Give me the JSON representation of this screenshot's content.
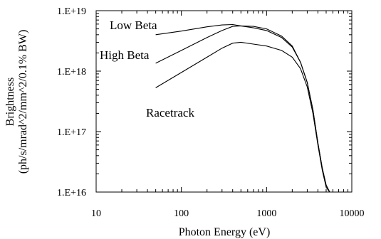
{
  "chart_data": {
    "type": "line",
    "title": "",
    "xlabel": "Photon Energy (eV)",
    "ylabel_lines": [
      "Brightness",
      "(ph/s/mrad^2/mm^2/0.1% BW)"
    ],
    "xscale": "log",
    "yscale": "log",
    "xlim": [
      10,
      10000
    ],
    "ylim": [
      1e+16,
      1e+19
    ],
    "grid": false,
    "legend": "none",
    "x_tick_labels": [
      "10",
      "100",
      "1000",
      "10000"
    ],
    "y_tick_labels": [
      "1.E+16",
      "1.E+17",
      "1.E+18",
      "1.E+19"
    ],
    "series": [
      {
        "name": "Low Beta",
        "points": [
          [
            50,
            4e+18
          ],
          [
            100,
            4.6e+18
          ],
          [
            200,
            5.4e+18
          ],
          [
            300,
            5.8e+18
          ],
          [
            400,
            5.9e+18
          ],
          [
            500,
            5.6e+18
          ],
          [
            700,
            5.2e+18
          ],
          [
            1000,
            4.7e+18
          ],
          [
            1500,
            3.6e+18
          ],
          [
            2000,
            2.5e+18
          ],
          [
            2500,
            1.4e+18
          ],
          [
            3000,
            6.5e+17
          ],
          [
            3500,
            2.3e+17
          ],
          [
            4000,
            6.5e+16
          ],
          [
            4500,
            2.5e+16
          ],
          [
            5000,
            1.3e+16
          ],
          [
            5500,
            1e+16
          ]
        ]
      },
      {
        "name": "High Beta",
        "points": [
          [
            50,
            1.35e+18
          ],
          [
            100,
            2.2e+18
          ],
          [
            200,
            3.6e+18
          ],
          [
            300,
            4.7e+18
          ],
          [
            400,
            5.5e+18
          ],
          [
            500,
            5.6e+18
          ],
          [
            700,
            5.5e+18
          ],
          [
            1000,
            5e+18
          ],
          [
            1500,
            3.8e+18
          ],
          [
            2000,
            2.6e+18
          ],
          [
            2500,
            1.4e+18
          ],
          [
            3000,
            6.5e+17
          ],
          [
            3500,
            2.3e+17
          ],
          [
            4000,
            6.5e+16
          ],
          [
            4500,
            2.5e+16
          ],
          [
            5000,
            1.3e+16
          ],
          [
            5500,
            1e+16
          ]
        ]
      },
      {
        "name": "Racetrack",
        "points": [
          [
            50,
            5.3e+17
          ],
          [
            100,
            9.5e+17
          ],
          [
            200,
            1.7e+18
          ],
          [
            300,
            2.4e+18
          ],
          [
            400,
            2.9e+18
          ],
          [
            500,
            3e+18
          ],
          [
            700,
            2.8e+18
          ],
          [
            1000,
            2.6e+18
          ],
          [
            1500,
            2.2e+18
          ],
          [
            2000,
            1.7e+18
          ],
          [
            2500,
            1.1e+18
          ],
          [
            3000,
            5.5e+17
          ],
          [
            3500,
            2e+17
          ],
          [
            4000,
            6e+16
          ],
          [
            4500,
            2.3e+16
          ],
          [
            5000,
            1.2e+16
          ],
          [
            5500,
            1e+16
          ]
        ]
      }
    ],
    "annotations": [
      {
        "text": "Low Beta",
        "series": "Low Beta"
      },
      {
        "text": "High Beta",
        "series": "High Beta"
      },
      {
        "text": "Racetrack",
        "series": "Racetrack"
      }
    ]
  }
}
